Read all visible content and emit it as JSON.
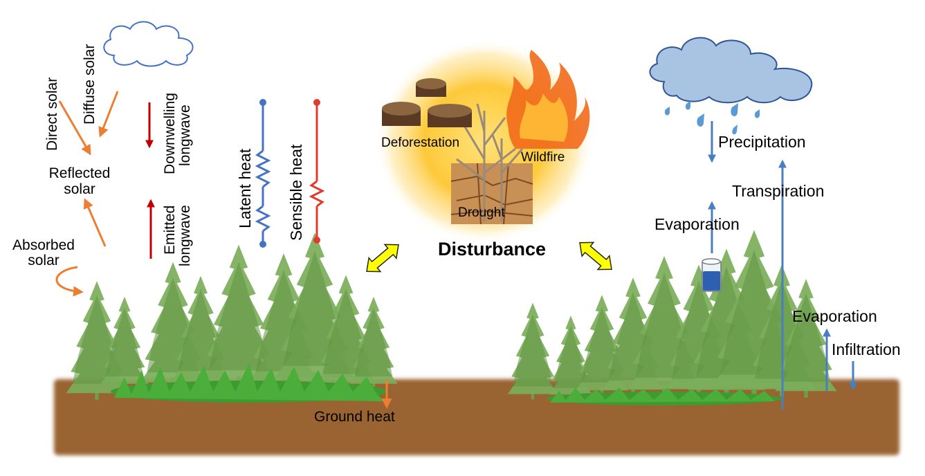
{
  "left_panel": {
    "direct_solar": "Direct solar",
    "diffuse_solar": "Diffuse solar",
    "reflected_solar_line1": "Reflected",
    "reflected_solar_line2": "solar",
    "absorbed_solar_line1": "Absorbed",
    "absorbed_solar_line2": "solar",
    "downwelling_line1": "Downwelling",
    "downwelling_line2": "longwave",
    "emitted_line1": "Emitted",
    "emitted_line2": "longwave",
    "latent_heat": "Latent heat",
    "sensible_heat": "Sensible heat",
    "ground_heat": "Ground heat"
  },
  "center_panel": {
    "deforestation": "Deforestation",
    "wildfire": "Wildfire",
    "drought": "Drought",
    "disturbance": "Disturbance"
  },
  "right_panel": {
    "precipitation": "Precipitation",
    "transpiration": "Transpiration",
    "evaporation_top": "Evaporation",
    "evaporation_bottom": "Evaporation",
    "infiltration": "Infiltration"
  },
  "colors": {
    "solar_arrow": "#ED7D31",
    "longwave_arrow": "#C00000",
    "latent_heat": "#4472C4",
    "sensible_heat": "#E03C2D",
    "water_arrow": "#4A7EC2",
    "soil": "#9A6330",
    "tree": "#6BA04A",
    "grass": "#3E9B2F",
    "disturbance_arrow": "#FFFF00"
  }
}
